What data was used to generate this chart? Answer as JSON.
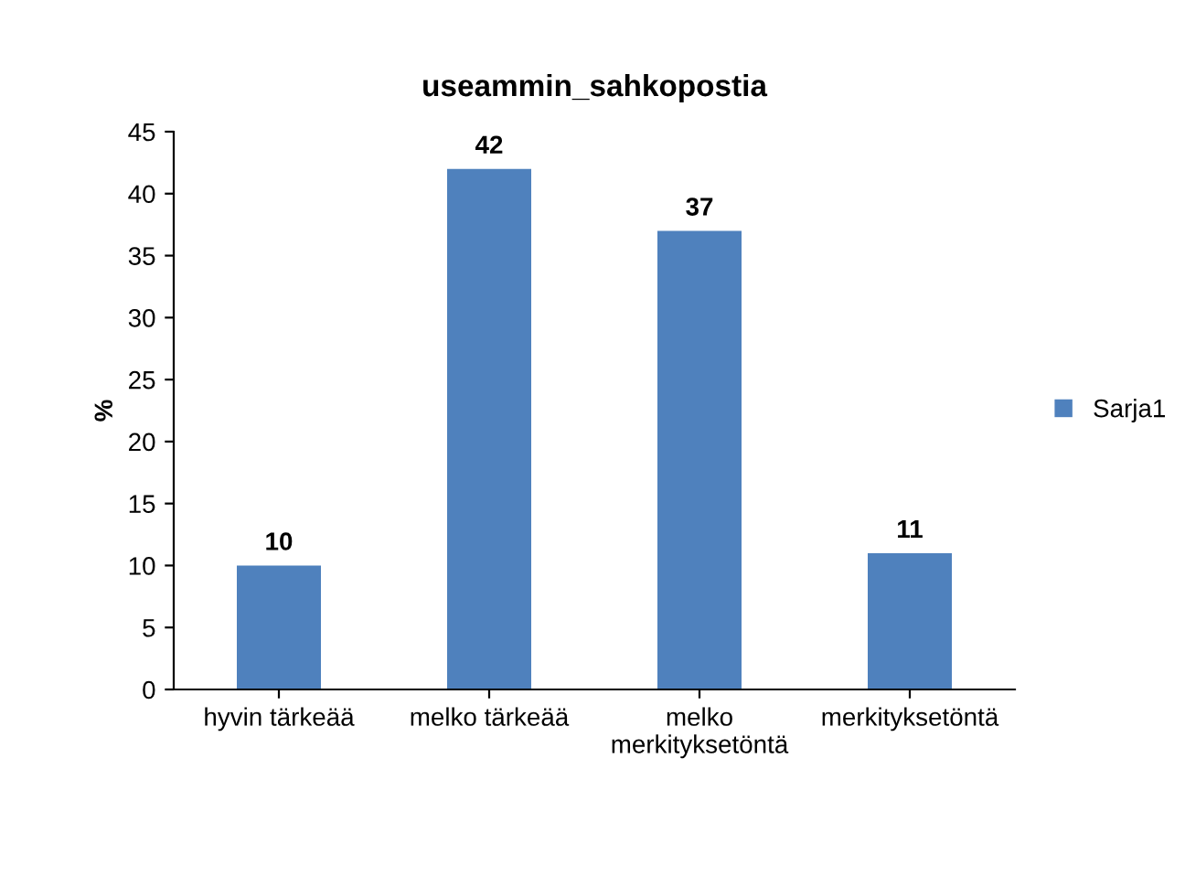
{
  "chart_data": {
    "type": "bar",
    "title": "useammin_sahkopostia",
    "ylabel": "%",
    "categories": [
      "hyvin tärkeää",
      "melko tärkeää",
      "melko\nmerkityksetöntä",
      "merkityksetöntä"
    ],
    "series": [
      {
        "name": "Sarja1",
        "color": "#4f81bd",
        "values": [
          10,
          42,
          37,
          11
        ]
      }
    ],
    "ylim": [
      0,
      45
    ],
    "yticks": [
      0,
      5,
      10,
      15,
      20,
      25,
      30,
      35,
      40,
      45
    ],
    "data_labels": true,
    "grid": false,
    "legend": "right"
  }
}
